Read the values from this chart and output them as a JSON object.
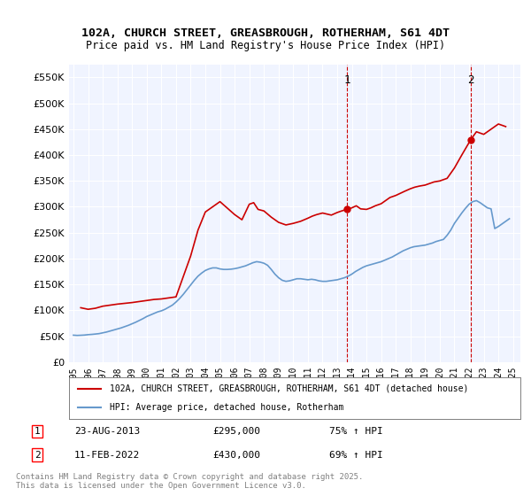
{
  "title": "102A, CHURCH STREET, GREASBROUGH, ROTHERHAM, S61 4DT",
  "subtitle": "Price paid vs. HM Land Registry's House Price Index (HPI)",
  "ylim": [
    0,
    575000
  ],
  "yticks": [
    0,
    50000,
    100000,
    150000,
    200000,
    250000,
    300000,
    350000,
    400000,
    450000,
    500000,
    550000
  ],
  "xlabel_years": [
    "1995",
    "1996",
    "1997",
    "1998",
    "1999",
    "2000",
    "2001",
    "2002",
    "2003",
    "2004",
    "2005",
    "2006",
    "2007",
    "2008",
    "2009",
    "2010",
    "2011",
    "2012",
    "2013",
    "2014",
    "2015",
    "2016",
    "2017",
    "2018",
    "2019",
    "2020",
    "2021",
    "2022",
    "2023",
    "2024",
    "2025"
  ],
  "hpi_color": "#6699cc",
  "price_color": "#cc0000",
  "background_color": "#f0f4ff",
  "sale1": {
    "date": "23-AUG-2013",
    "price": 295000,
    "pct": "75%",
    "label": "1",
    "year": 2013.65
  },
  "sale2": {
    "date": "11-FEB-2022",
    "price": 430000,
    "pct": "69%",
    "label": "2",
    "year": 2022.12
  },
  "legend_label_red": "102A, CHURCH STREET, GREASBROUGH, ROTHERHAM, S61 4DT (detached house)",
  "legend_label_blue": "HPI: Average price, detached house, Rotherham",
  "footnote": "Contains HM Land Registry data © Crown copyright and database right 2025.\nThis data is licensed under the Open Government Licence v3.0.",
  "hpi_data_x": [
    1995.0,
    1995.25,
    1995.5,
    1995.75,
    1996.0,
    1996.25,
    1996.5,
    1996.75,
    1997.0,
    1997.25,
    1997.5,
    1997.75,
    1998.0,
    1998.25,
    1998.5,
    1998.75,
    1999.0,
    1999.25,
    1999.5,
    1999.75,
    2000.0,
    2000.25,
    2000.5,
    2000.75,
    2001.0,
    2001.25,
    2001.5,
    2001.75,
    2002.0,
    2002.25,
    2002.5,
    2002.75,
    2003.0,
    2003.25,
    2003.5,
    2003.75,
    2004.0,
    2004.25,
    2004.5,
    2004.75,
    2005.0,
    2005.25,
    2005.5,
    2005.75,
    2006.0,
    2006.25,
    2006.5,
    2006.75,
    2007.0,
    2007.25,
    2007.5,
    2007.75,
    2008.0,
    2008.25,
    2008.5,
    2008.75,
    2009.0,
    2009.25,
    2009.5,
    2009.75,
    2010.0,
    2010.25,
    2010.5,
    2010.75,
    2011.0,
    2011.25,
    2011.5,
    2011.75,
    2012.0,
    2012.25,
    2012.5,
    2012.75,
    2013.0,
    2013.25,
    2013.5,
    2013.75,
    2014.0,
    2014.25,
    2014.5,
    2014.75,
    2015.0,
    2015.25,
    2015.5,
    2015.75,
    2016.0,
    2016.25,
    2016.5,
    2016.75,
    2017.0,
    2017.25,
    2017.5,
    2017.75,
    2018.0,
    2018.25,
    2018.5,
    2018.75,
    2019.0,
    2019.25,
    2019.5,
    2019.75,
    2020.0,
    2020.25,
    2020.5,
    2020.75,
    2021.0,
    2021.25,
    2021.5,
    2021.75,
    2022.0,
    2022.25,
    2022.5,
    2022.75,
    2023.0,
    2023.25,
    2023.5,
    2023.75,
    2024.0,
    2024.25,
    2024.5,
    2024.75
  ],
  "hpi_data_y": [
    52000,
    51500,
    51800,
    52200,
    53000,
    53500,
    54200,
    55000,
    56500,
    58000,
    60000,
    62000,
    64000,
    66000,
    68500,
    71000,
    74000,
    77000,
    80500,
    84000,
    88000,
    91000,
    94000,
    97000,
    99000,
    102000,
    106000,
    110000,
    116000,
    123000,
    131000,
    140000,
    149000,
    158000,
    166000,
    172000,
    177000,
    180000,
    182000,
    182000,
    180000,
    179000,
    179000,
    179500,
    180500,
    182000,
    184000,
    186000,
    189000,
    192000,
    194000,
    193000,
    191000,
    187000,
    179000,
    170000,
    163000,
    158000,
    156000,
    157000,
    159000,
    161000,
    161000,
    160000,
    159000,
    160000,
    159000,
    157000,
    156000,
    156000,
    157000,
    158000,
    159000,
    161000,
    163000,
    166000,
    170000,
    175000,
    179000,
    183000,
    186000,
    188000,
    190000,
    192000,
    194000,
    197000,
    200000,
    203000,
    207000,
    211000,
    215000,
    218000,
    221000,
    223000,
    224000,
    225000,
    226000,
    228000,
    230000,
    233000,
    235000,
    237000,
    245000,
    255000,
    268000,
    278000,
    288000,
    297000,
    305000,
    310000,
    312000,
    308000,
    303000,
    298000,
    296000,
    258000,
    262000,
    267000,
    272000,
    277000
  ],
  "price_data_x": [
    1995.5,
    1996.0,
    1996.5,
    1997.0,
    1997.5,
    1998.0,
    1999.0,
    1999.5,
    2000.0,
    2000.5,
    2001.0,
    2002.0,
    2003.0,
    2003.5,
    2004.0,
    2005.0,
    2006.0,
    2006.5,
    2007.0,
    2007.3,
    2007.6,
    2008.0,
    2008.5,
    2009.0,
    2009.5,
    2010.0,
    2010.5,
    2011.0,
    2011.3,
    2011.6,
    2012.0,
    2012.3,
    2012.6,
    2013.0,
    2013.3,
    2013.65,
    2014.0,
    2014.3,
    2014.6,
    2015.0,
    2015.3,
    2015.6,
    2016.0,
    2016.3,
    2016.6,
    2017.0,
    2017.3,
    2017.6,
    2018.0,
    2018.3,
    2018.6,
    2019.0,
    2019.3,
    2019.6,
    2020.0,
    2020.5,
    2021.0,
    2021.5,
    2022.12,
    2022.5,
    2023.0,
    2023.5,
    2024.0,
    2024.5
  ],
  "price_data_y": [
    105000,
    102000,
    104000,
    108000,
    110000,
    112000,
    115000,
    117000,
    119000,
    121000,
    122000,
    126000,
    205000,
    255000,
    290000,
    310000,
    285000,
    275000,
    305000,
    308000,
    295000,
    292000,
    280000,
    270000,
    265000,
    268000,
    272000,
    278000,
    282000,
    285000,
    288000,
    286000,
    284000,
    289000,
    292000,
    295000,
    298000,
    302000,
    296000,
    295000,
    298000,
    302000,
    306000,
    312000,
    318000,
    322000,
    326000,
    330000,
    335000,
    338000,
    340000,
    342000,
    345000,
    348000,
    350000,
    355000,
    375000,
    400000,
    430000,
    445000,
    440000,
    450000,
    460000,
    455000
  ]
}
